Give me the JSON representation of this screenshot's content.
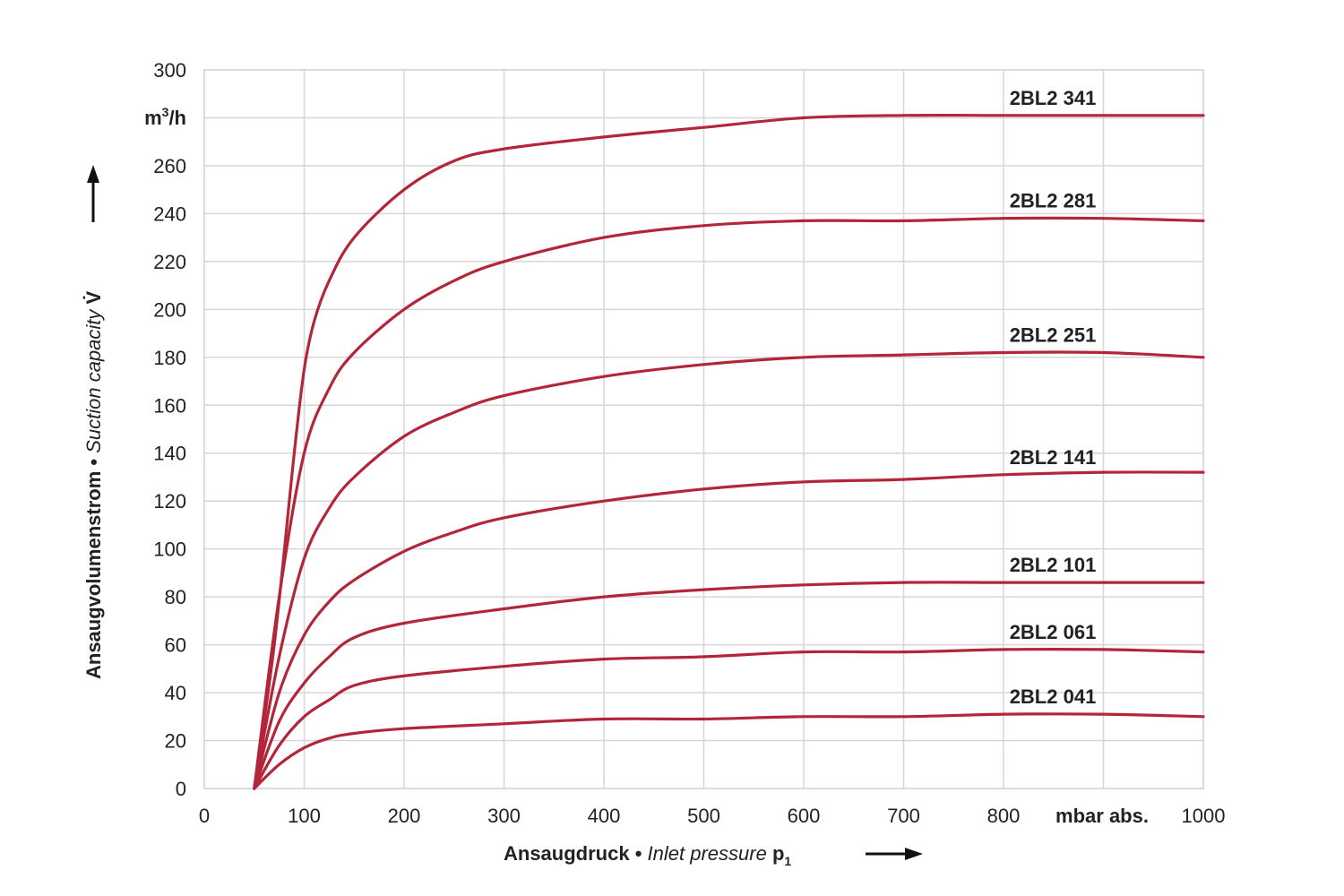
{
  "chart_data": {
    "type": "line",
    "xlim": [
      0,
      1000
    ],
    "ylim": [
      0,
      300
    ],
    "x_ticks": [
      "0",
      "100",
      "200",
      "300",
      "400",
      "500",
      "600",
      "700",
      "800",
      "1000"
    ],
    "x_unit": "mbar abs.",
    "y_ticks": [
      "0",
      "20",
      "40",
      "60",
      "80",
      "100",
      "120",
      "140",
      "160",
      "180",
      "200",
      "220",
      "240",
      "260",
      "300"
    ],
    "y_unit_base": "m",
    "y_unit_sup": "3",
    "y_unit_rest": "/h",
    "xlabel": {
      "de": "Ansaugdruck",
      "sep": " • ",
      "en": "Inlet pressure",
      "sym": " p",
      "sub": "1"
    },
    "ylabel": {
      "de": "Ansaugvolumenstrom",
      "sep": " • ",
      "en": "Suction capacity",
      "sym": " V̇"
    },
    "grid": true,
    "line_color": "#b3263a",
    "series": [
      {
        "name": "2BL2 341",
        "x": [
          50,
          70,
          90,
          100,
          110,
          125,
          150,
          200,
          250,
          300,
          400,
          500,
          600,
          700,
          800,
          900,
          1000
        ],
        "y": [
          0,
          60,
          140,
          175,
          195,
          212,
          230,
          250,
          262,
          267,
          272,
          276,
          280,
          281,
          281,
          281,
          281
        ]
      },
      {
        "name": "2BL2 281",
        "x": [
          50,
          75,
          100,
          125,
          150,
          200,
          250,
          300,
          400,
          500,
          600,
          700,
          800,
          900,
          1000
        ],
        "y": [
          0,
          80,
          140,
          167,
          182,
          200,
          212,
          220,
          230,
          235,
          237,
          237,
          238,
          238,
          237
        ]
      },
      {
        "name": "2BL2 251",
        "x": [
          50,
          75,
          100,
          125,
          150,
          200,
          250,
          300,
          400,
          500,
          600,
          700,
          800,
          900,
          1000
        ],
        "y": [
          0,
          55,
          96,
          117,
          130,
          147,
          157,
          164,
          172,
          177,
          180,
          181,
          182,
          182,
          180
        ]
      },
      {
        "name": "2BL2 141",
        "x": [
          50,
          75,
          100,
          125,
          150,
          200,
          250,
          300,
          400,
          500,
          600,
          700,
          800,
          900,
          1000
        ],
        "y": [
          0,
          40,
          64,
          78,
          87,
          99,
          107,
          113,
          120,
          125,
          128,
          129,
          131,
          132,
          132
        ]
      },
      {
        "name": "2BL2 101",
        "x": [
          50,
          75,
          100,
          125,
          150,
          200,
          300,
          400,
          500,
          600,
          700,
          800,
          900,
          1000
        ],
        "y": [
          0,
          28,
          44,
          55,
          63,
          69,
          75,
          80,
          83,
          85,
          86,
          86,
          86,
          86
        ]
      },
      {
        "name": "2BL2 061",
        "x": [
          50,
          75,
          100,
          125,
          150,
          200,
          300,
          400,
          500,
          600,
          700,
          800,
          900,
          1000
        ],
        "y": [
          0,
          18,
          30,
          37,
          43,
          47,
          51,
          54,
          55,
          57,
          57,
          58,
          58,
          57
        ]
      },
      {
        "name": "2BL2 041",
        "x": [
          50,
          75,
          100,
          125,
          150,
          200,
          300,
          400,
          500,
          600,
          700,
          800,
          900,
          1000
        ],
        "y": [
          0,
          10,
          17,
          21,
          23,
          25,
          27,
          29,
          29,
          30,
          30,
          31,
          31,
          30
        ]
      }
    ]
  }
}
